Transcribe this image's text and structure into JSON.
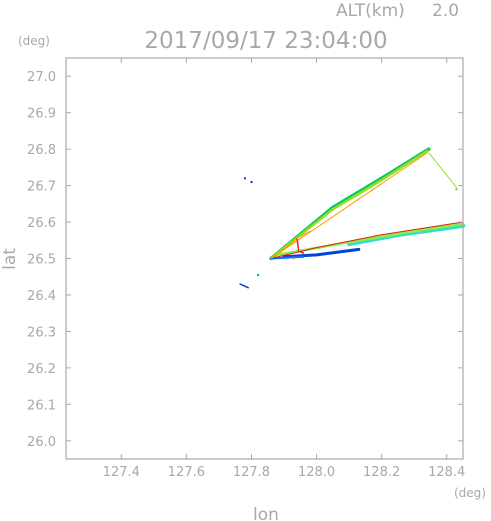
{
  "chart_data": {
    "type": "scatter",
    "alt_label": "ALT(km)",
    "alt_value": "2.0",
    "title": "2017/09/17 23:04:00",
    "x_unit": "(deg)",
    "y_unit": "(deg)",
    "xlabel": "lon",
    "ylabel": "lat",
    "xlim": [
      127.23,
      128.45
    ],
    "ylim": [
      25.95,
      27.05
    ],
    "grid": false,
    "xticks": [
      127.4,
      127.6,
      127.8,
      128.0,
      128.2,
      128.4
    ],
    "xtick_labels": [
      "127.4",
      "127.6",
      "127.8",
      "128.0",
      "128.2",
      "128.4"
    ],
    "yticks": [
      26.0,
      26.1,
      26.2,
      26.3,
      26.4,
      26.5,
      26.6,
      26.7,
      26.8,
      26.9,
      27.0
    ],
    "ytick_labels": [
      "26.0",
      "26.1",
      "26.2",
      "26.3",
      "26.4",
      "26.5",
      "26.6",
      "26.7",
      "26.8",
      "26.9",
      "27.0"
    ],
    "series": [
      {
        "color": "#00cc66",
        "width": 3.5,
        "points": [
          [
            127.86,
            26.5
          ],
          [
            128.05,
            26.64
          ],
          [
            128.2,
            26.72
          ],
          [
            128.345,
            26.8
          ]
        ]
      },
      {
        "color": "#99dd22",
        "width": 2.5,
        "points": [
          [
            127.86,
            26.5
          ],
          [
            128.05,
            26.635
          ],
          [
            128.2,
            26.715
          ],
          [
            128.34,
            26.795
          ]
        ]
      },
      {
        "color": "#ff9900",
        "width": 1.0,
        "points": [
          [
            127.86,
            26.5
          ],
          [
            128.34,
            26.79
          ]
        ]
      },
      {
        "color": "#33ddcc",
        "width": 4.5,
        "points": [
          [
            128.1,
            26.54
          ],
          [
            128.25,
            26.565
          ],
          [
            128.45,
            26.59
          ]
        ]
      },
      {
        "color": "#88ee44",
        "width": 2.5,
        "points": [
          [
            127.88,
            26.51
          ],
          [
            128.1,
            26.545
          ],
          [
            128.3,
            26.575
          ],
          [
            128.45,
            26.595
          ]
        ]
      },
      {
        "color": "#dd2211",
        "width": 1.0,
        "points": [
          [
            127.86,
            26.5
          ],
          [
            128.0,
            26.53
          ],
          [
            128.2,
            26.565
          ],
          [
            128.45,
            26.6
          ]
        ]
      },
      {
        "color": "#0044dd",
        "width": 3.0,
        "points": [
          [
            127.9,
            26.505
          ],
          [
            128.0,
            26.51
          ],
          [
            128.13,
            26.525
          ]
        ]
      },
      {
        "color": "#1166ff",
        "width": 2.0,
        "points": [
          [
            127.86,
            26.5
          ],
          [
            127.96,
            26.505
          ]
        ]
      },
      {
        "color": "#ee2222",
        "width": 1.5,
        "points": [
          [
            127.94,
            26.555
          ],
          [
            127.945,
            26.52
          ],
          [
            127.96,
            26.515
          ]
        ]
      },
      {
        "color": "#ff9900",
        "width": 1.0,
        "points": [
          [
            127.86,
            26.5
          ],
          [
            127.94,
            26.555
          ],
          [
            127.98,
            26.575
          ]
        ]
      },
      {
        "color": "#99dd22",
        "width": 1.0,
        "points": [
          [
            128.345,
            26.79
          ],
          [
            128.43,
            26.695
          ]
        ]
      },
      {
        "color": "#1133cc",
        "width": 1.5,
        "points": [
          [
            127.765,
            26.43
          ],
          [
            127.79,
            26.42
          ]
        ]
      }
    ],
    "dots": [
      [
        127.78,
        26.72,
        "#1133cc"
      ],
      [
        127.8,
        26.71,
        "#1133cc"
      ],
      [
        127.82,
        26.455,
        "#00aa66"
      ],
      [
        128.43,
        26.69,
        "#66cc44"
      ],
      [
        127.93,
        26.5,
        "#ff9900"
      ]
    ]
  }
}
